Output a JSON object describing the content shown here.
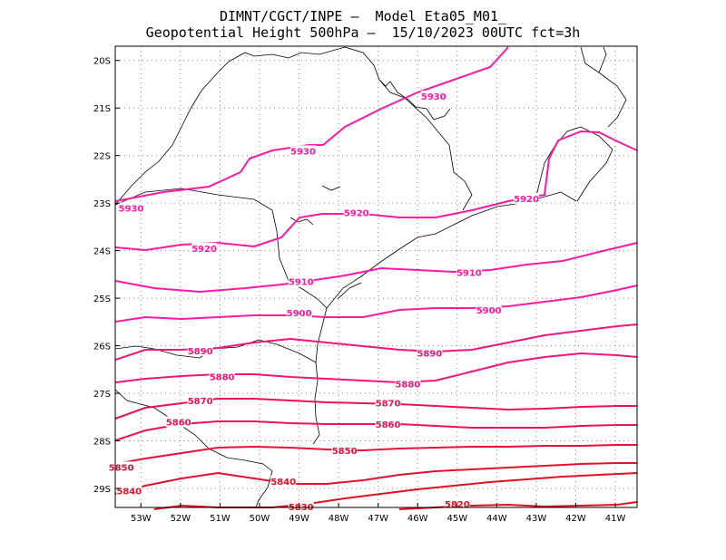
{
  "header": {
    "title_line1": "DIMNT/CGCT/INPE –  Model Eta05_M01_",
    "title_line2": "Geopotential Height 500hPa –  15/10/2023 00UTC fct=3h"
  },
  "map": {
    "lon_range": [
      -53.65,
      -40.45
    ],
    "lat_range": [
      -29.4,
      -19.7
    ],
    "lon_ticks": [
      {
        "value": -53,
        "label": "53W"
      },
      {
        "value": -52,
        "label": "52W"
      },
      {
        "value": -51,
        "label": "51W"
      },
      {
        "value": -50,
        "label": "50W"
      },
      {
        "value": -49,
        "label": "49W"
      },
      {
        "value": -48,
        "label": "48W"
      },
      {
        "value": -47,
        "label": "47W"
      },
      {
        "value": -46,
        "label": "46W"
      },
      {
        "value": -45,
        "label": "45W"
      },
      {
        "value": -44,
        "label": "44W"
      },
      {
        "value": -43,
        "label": "43W"
      },
      {
        "value": -42,
        "label": "42W"
      },
      {
        "value": -41,
        "label": "41W"
      }
    ],
    "lat_ticks": [
      {
        "value": -20,
        "label": "20S"
      },
      {
        "value": -21,
        "label": "21S"
      },
      {
        "value": -22,
        "label": "22S"
      },
      {
        "value": -23,
        "label": "23S"
      },
      {
        "value": -24,
        "label": "24S"
      },
      {
        "value": -25,
        "label": "25S"
      },
      {
        "value": -26,
        "label": "26S"
      },
      {
        "value": -27,
        "label": "27S"
      },
      {
        "value": -28,
        "label": "28S"
      },
      {
        "value": -29,
        "label": "29S"
      }
    ],
    "grid": "dotted",
    "contour_labels": [
      {
        "text": "5930",
        "lon": -45.6,
        "lat": -20.75,
        "color": "#ff1aa3"
      },
      {
        "text": "5930",
        "lon": -48.9,
        "lat": -21.9,
        "color": "#ff1aa3"
      },
      {
        "text": "5930",
        "lon": -53.25,
        "lat": -23.1,
        "color": "#ff1aa3"
      },
      {
        "text": "5920",
        "lon": -43.25,
        "lat": -22.9,
        "color": "#ff1aa3"
      },
      {
        "text": "5920",
        "lon": -47.55,
        "lat": -23.2,
        "color": "#ff1aa3"
      },
      {
        "text": "5920",
        "lon": -51.4,
        "lat": -23.95,
        "color": "#ff1aa3"
      },
      {
        "text": "5910",
        "lon": -48.95,
        "lat": -24.65,
        "color": "#ff1aa3"
      },
      {
        "text": "5910",
        "lon": -44.7,
        "lat": -24.45,
        "color": "#ff1aa3"
      },
      {
        "text": "5900",
        "lon": -49.0,
        "lat": -25.3,
        "color": "#ff1aa3"
      },
      {
        "text": "5900",
        "lon": -44.2,
        "lat": -25.25,
        "color": "#ff1aa3"
      },
      {
        "text": "5890",
        "lon": -51.5,
        "lat": -26.1,
        "color": "#f5157a"
      },
      {
        "text": "5890",
        "lon": -45.7,
        "lat": -26.15,
        "color": "#f5157a"
      },
      {
        "text": "5880",
        "lon": -50.95,
        "lat": -26.65,
        "color": "#f5157a"
      },
      {
        "text": "5880",
        "lon": -46.25,
        "lat": -26.8,
        "color": "#f5157a"
      },
      {
        "text": "5870",
        "lon": -51.5,
        "lat": -27.15,
        "color": "#ee1155"
      },
      {
        "text": "5870",
        "lon": -46.75,
        "lat": -27.2,
        "color": "#ee1155"
      },
      {
        "text": "5860",
        "lon": -52.05,
        "lat": -27.6,
        "color": "#ee1155"
      },
      {
        "text": "5860",
        "lon": -46.75,
        "lat": -27.65,
        "color": "#ee1155"
      },
      {
        "text": "5850",
        "lon": -47.85,
        "lat": -28.2,
        "color": "#e8103a"
      },
      {
        "text": "5850",
        "lon": -53.5,
        "lat": -28.55,
        "color": "#e8103a"
      },
      {
        "text": "5840",
        "lon": -49.4,
        "lat": -28.85,
        "color": "#e4102c"
      },
      {
        "text": "5840",
        "lon": -53.3,
        "lat": -29.05,
        "color": "#e4102c"
      },
      {
        "text": "5830",
        "lon": -48.95,
        "lat": -29.38,
        "color": "#e21020"
      },
      {
        "text": "5820",
        "lon": -45.0,
        "lat": -29.32,
        "color": "#e21020"
      }
    ]
  }
}
